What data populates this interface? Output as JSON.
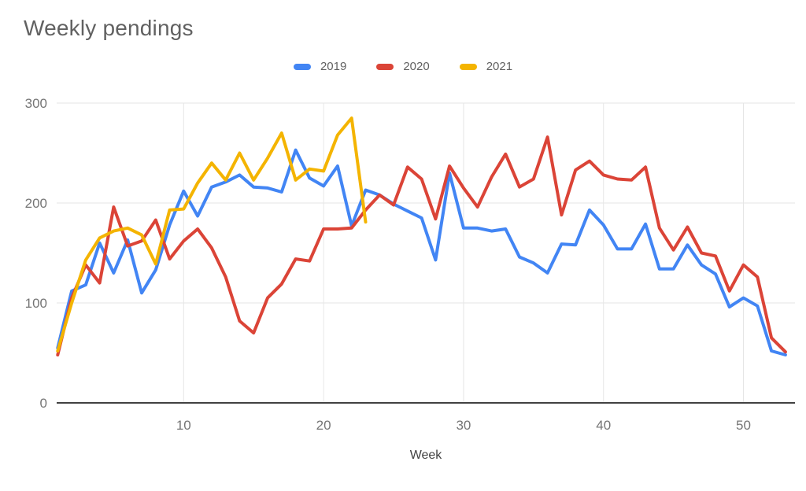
{
  "title": "Weekly pendings",
  "legend": [
    {
      "label": "2019",
      "color": "#4285F4"
    },
    {
      "label": "2020",
      "color": "#DB4437"
    },
    {
      "label": "2021",
      "color": "#F4B400"
    }
  ],
  "axes": {
    "x_title": "Week",
    "x_ticks": [
      10,
      20,
      30,
      40,
      50
    ],
    "y_ticks": [
      0,
      100,
      200,
      300
    ]
  },
  "colors": {
    "gridline": "#e6e6e6",
    "axis_line": "#424242",
    "tick_text": "#757575"
  },
  "chart_data": {
    "type": "line",
    "title": "Weekly pendings",
    "xlabel": "Week",
    "ylabel": "",
    "xlim": [
      1,
      53
    ],
    "ylim": [
      0,
      300
    ],
    "grid": true,
    "legend_position": "top-center",
    "x": [
      1,
      2,
      3,
      4,
      5,
      6,
      7,
      8,
      9,
      10,
      11,
      12,
      13,
      14,
      15,
      16,
      17,
      18,
      19,
      20,
      21,
      22,
      23,
      24,
      25,
      26,
      27,
      28,
      29,
      30,
      31,
      32,
      33,
      34,
      35,
      36,
      37,
      38,
      39,
      40,
      41,
      42,
      43,
      44,
      45,
      46,
      47,
      48,
      49,
      50,
      51,
      52,
      53
    ],
    "series": [
      {
        "name": "2019",
        "color": "#4285F4",
        "values": [
          55,
          112,
          118,
          160,
          130,
          163,
          110,
          133,
          178,
          212,
          187,
          216,
          221,
          228,
          216,
          215,
          211,
          253,
          225,
          217,
          237,
          177,
          213,
          208,
          199,
          192,
          185,
          143,
          230,
          175,
          175,
          172,
          174,
          146,
          140,
          130,
          159,
          158,
          193,
          178,
          154,
          154,
          179,
          134,
          134,
          158,
          138,
          129,
          96,
          105,
          97,
          52,
          48
        ]
      },
      {
        "name": "2020",
        "color": "#DB4437",
        "values": [
          48,
          105,
          138,
          120,
          196,
          157,
          162,
          183,
          144,
          162,
          174,
          155,
          126,
          82,
          70,
          105,
          119,
          144,
          142,
          174,
          174,
          175,
          193,
          208,
          198,
          236,
          224,
          184,
          237,
          215,
          196,
          226,
          249,
          216,
          224,
          266,
          188,
          233,
          242,
          228,
          224,
          223,
          236,
          175,
          153,
          176,
          150,
          147,
          112,
          138,
          126,
          65,
          51
        ]
      },
      {
        "name": "2021",
        "color": "#F4B400",
        "values": [
          52,
          100,
          143,
          165,
          172,
          175,
          168,
          139,
          193,
          194,
          220,
          240,
          223,
          250,
          223,
          245,
          270,
          223,
          234,
          232,
          268,
          285,
          181
        ]
      }
    ]
  }
}
